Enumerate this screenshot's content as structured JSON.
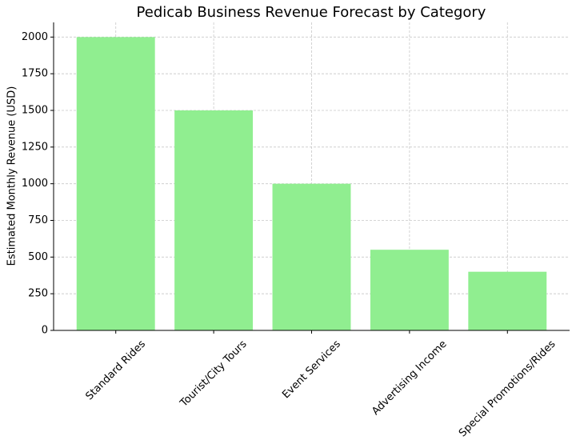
{
  "chart_data": {
    "type": "bar",
    "title": "Pedicab Business Revenue Forecast by Category",
    "y_label": "Estimated Monthly Revenue (USD)",
    "categories": [
      "Standard Rides",
      "Tourist/City Tours",
      "Event Services",
      "Advertising Income",
      "Special Promotions/Rides"
    ],
    "values": [
      2000,
      1500,
      1000,
      550,
      400
    ],
    "color": "#90ee90",
    "ylim": [
      0,
      2100
    ],
    "yticks": [
      0,
      250,
      500,
      750,
      1000,
      1250,
      1500,
      1750,
      2000
    ],
    "grid": true
  }
}
